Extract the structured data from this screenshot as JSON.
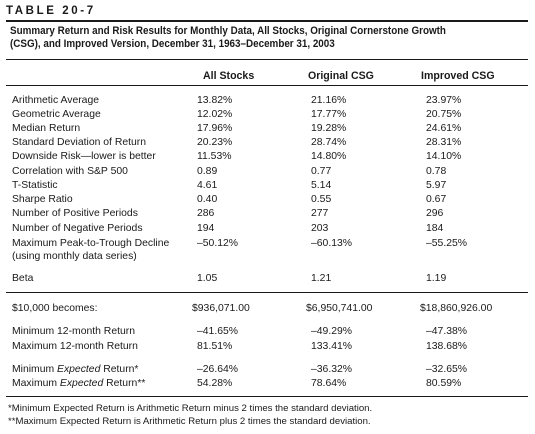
{
  "table_label": "TABLE 20-7",
  "title_lines": [
    "Summary Return and Risk Results for Monthly Data, All Stocks, Original Cornerstone Growth",
    "(CSG), and Improved Version, December 31, 1963–December 31, 2003"
  ],
  "columns": [
    "All Stocks",
    "Original CSG",
    "Improved CSG"
  ],
  "rows": [
    {
      "label": "Arithmetic Average",
      "values": [
        "13.82%",
        "21.16%",
        "23.97%"
      ]
    },
    {
      "label": "Geometric Average",
      "values": [
        "12.02%",
        "17.77%",
        "20.75%"
      ]
    },
    {
      "label": "Median Return",
      "values": [
        "17.96%",
        "19.28%",
        "24.61%"
      ]
    },
    {
      "label": "Standard Deviation of Return",
      "values": [
        "20.23%",
        "28.74%",
        "28.31%"
      ]
    },
    {
      "label": "Downside Risk—lower is better",
      "values": [
        "11.53%",
        "14.80%",
        "14.10%"
      ]
    },
    {
      "label": "Correlation with S&P 500",
      "values": [
        "0.89",
        "0.77",
        "0.78"
      ]
    },
    {
      "label": "T-Statistic",
      "values": [
        "4.61",
        "5.14",
        "5.97"
      ]
    },
    {
      "label": "Sharpe Ratio",
      "values": [
        "0.40",
        "0.55",
        "0.67"
      ]
    },
    {
      "label": "Number of Positive Periods",
      "values": [
        "286",
        "277",
        "296"
      ]
    },
    {
      "label": "Number of Negative Periods",
      "values": [
        "194",
        "203",
        "184"
      ]
    },
    {
      "label": "Maximum Peak-to-Trough Decline",
      "label2": "(using monthly data series)",
      "values": [
        "–50.12%",
        "–60.13%",
        "–55.25%"
      ]
    },
    {
      "label": "Beta",
      "values": [
        "1.05",
        "1.21",
        "1.19"
      ]
    },
    {
      "label": "$10,000 becomes:",
      "values": [
        "$936,071.00",
        "$6,950,741.00",
        "$18,860,926.00"
      ]
    },
    {
      "label": "Minimum 12-month Return",
      "values": [
        "–41.65%",
        "–49.29%",
        "–47.38%"
      ]
    },
    {
      "label": "Maximum 12-month Return",
      "values": [
        "81.51%",
        "133.41%",
        "138.68%"
      ]
    },
    {
      "label_pre": "Minimum ",
      "label_em": "Expected",
      "label_post": " Return*",
      "values": [
        "–26.64%",
        "–36.32%",
        "–32.65%"
      ]
    },
    {
      "label_pre": "Maximum ",
      "label_em": "Expected",
      "label_post": " Return**",
      "values": [
        "54.28%",
        "78.64%",
        "80.59%"
      ]
    }
  ],
  "footnotes": [
    "*Minimum Expected Return is Arithmetic Return minus 2 times the standard deviation.",
    "**Maximum Expected Return is Arithmetic Return plus 2 times the standard deviation."
  ]
}
